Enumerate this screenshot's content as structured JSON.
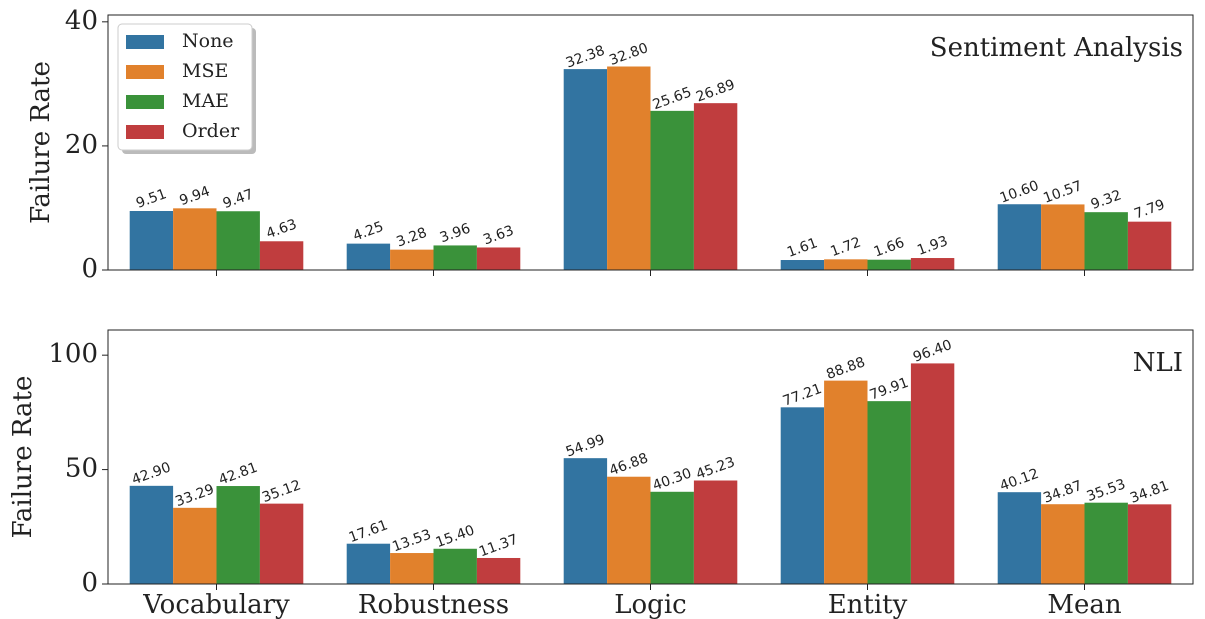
{
  "chart_data": [
    {
      "type": "bar",
      "annotation": "Sentiment Analysis",
      "ylabel": "Failure Rate",
      "categories": [
        null,
        null,
        null,
        null,
        null
      ],
      "ylim": [
        0,
        41.1
      ],
      "yticks": [
        0,
        20,
        40
      ],
      "legend": "upper left",
      "series": [
        {
          "name": "None",
          "color": "#3274a1",
          "values": [
            9.51,
            4.25,
            32.38,
            1.61,
            10.6
          ],
          "value_labels": [
            "9.51",
            "4.25",
            "32.38",
            "1.61",
            "10.60"
          ]
        },
        {
          "name": "MSE",
          "color": "#e1812c",
          "values": [
            9.94,
            3.28,
            32.8,
            1.72,
            10.57
          ],
          "value_labels": [
            "9.94",
            "3.28",
            "32.80",
            "1.72",
            "10.57"
          ]
        },
        {
          "name": "MAE",
          "color": "#3a923a",
          "values": [
            9.47,
            3.96,
            25.65,
            1.66,
            9.32
          ],
          "value_labels": [
            "9.47",
            "3.96",
            "25.65",
            "1.66",
            "9.32"
          ]
        },
        {
          "name": "Order",
          "color": "#c03d3e",
          "values": [
            4.63,
            3.63,
            26.89,
            1.93,
            7.79
          ],
          "value_labels": [
            "4.63",
            "3.63",
            "26.89",
            "1.93",
            "7.79"
          ]
        }
      ]
    },
    {
      "type": "bar",
      "annotation": "NLI",
      "ylabel": "Failure Rate",
      "categories": [
        "Vocabulary",
        "Robustness",
        "Logic",
        "Entity",
        "Mean"
      ],
      "ylim": [
        0,
        111
      ],
      "yticks": [
        0,
        50,
        100
      ],
      "series": [
        {
          "color": "#3274a1",
          "values": [
            42.9,
            17.61,
            54.99,
            77.21,
            40.12
          ],
          "value_labels": [
            "42.90",
            "17.61",
            "54.99",
            "77.21",
            "40.12"
          ]
        },
        {
          "color": "#e1812c",
          "values": [
            33.29,
            13.53,
            46.88,
            88.88,
            34.87
          ],
          "value_labels": [
            "33.29",
            "13.53",
            "46.88",
            "88.88",
            "34.87"
          ]
        },
        {
          "color": "#3a923a",
          "values": [
            42.81,
            15.4,
            40.3,
            79.91,
            35.53
          ],
          "value_labels": [
            "42.81",
            "15.40",
            "40.30",
            "79.91",
            "35.53"
          ]
        },
        {
          "color": "#c03d3e",
          "values": [
            35.12,
            11.37,
            45.23,
            96.4,
            34.81
          ],
          "value_labels": [
            "35.12",
            "11.37",
            "45.23",
            "96.40",
            "34.81"
          ]
        }
      ]
    }
  ]
}
